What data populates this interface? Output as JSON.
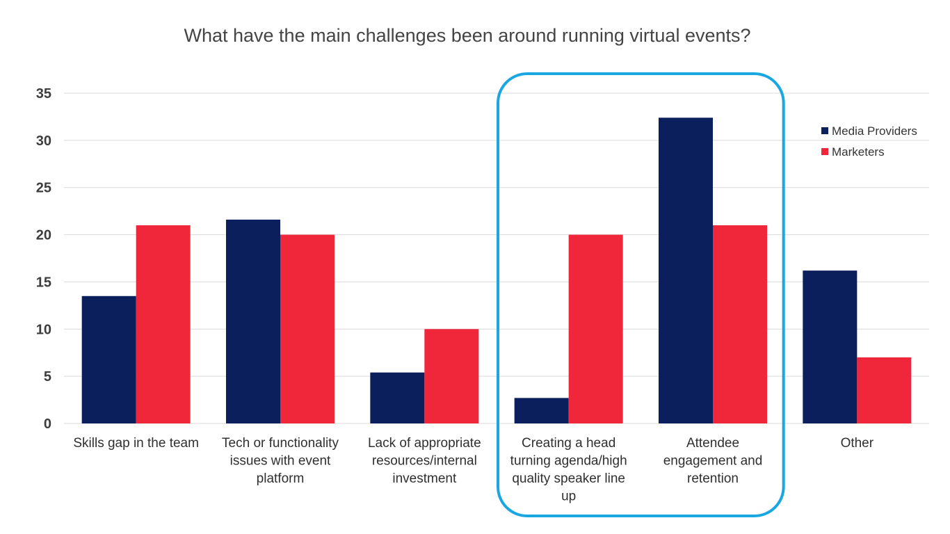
{
  "chart_data": {
    "type": "bar",
    "title": "What have the main challenges been around running virtual events?",
    "xlabel": "",
    "ylabel": "",
    "ylim": [
      0,
      35
    ],
    "yticks": [
      0,
      5,
      10,
      15,
      20,
      25,
      30,
      35
    ],
    "grid": true,
    "legend_position": "right",
    "categories": [
      "Skills gap in the team",
      "Tech or functionality issues with event platform",
      "Lack of appropriate resources/internal investment",
      "Creating a head turning agenda/high quality speaker line up",
      "Attendee engagement and retention",
      "Other"
    ],
    "category_label_lines": [
      [
        "Skills gap in the team"
      ],
      [
        "Tech or functionality",
        "issues with event",
        "platform"
      ],
      [
        "Lack of appropriate",
        "resources/internal",
        "investment"
      ],
      [
        "Creating a head",
        "turning agenda/high",
        "quality speaker line",
        "up"
      ],
      [
        "Attendee",
        "engagement and",
        "retention"
      ],
      [
        "Other"
      ]
    ],
    "series": [
      {
        "name": "Media Providers",
        "color": "#0b1f5c",
        "values": [
          13.5,
          21.6,
          5.4,
          2.7,
          32.4,
          16.2
        ]
      },
      {
        "name": "Marketers",
        "color": "#f0263b",
        "values": [
          21,
          20,
          10,
          20,
          21,
          7
        ]
      }
    ],
    "highlight": {
      "categories": [
        3,
        4
      ],
      "color": "#1aa7e1"
    }
  }
}
